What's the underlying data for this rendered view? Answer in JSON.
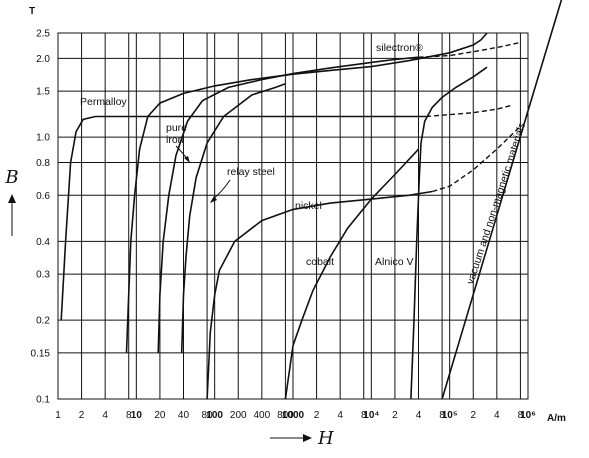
{
  "chart_data": {
    "type": "line",
    "title": "",
    "xlabel": "H",
    "ylabel": "B",
    "x_unit": "A/m",
    "y_unit": "T",
    "x_scale": "log",
    "y_scale": "log",
    "xlim": [
      1,
      1000000
    ],
    "ylim": [
      0.1,
      2.5
    ],
    "grid": true,
    "y_ticks": [
      "0.1",
      "0.15",
      "0.2",
      "0.3",
      "0.4",
      "0.6",
      "0.8",
      "1.0",
      "1.5",
      "2.0",
      "2.5"
    ],
    "y_tick_values": [
      0.1,
      0.15,
      0.2,
      0.3,
      0.4,
      0.6,
      0.8,
      1.0,
      1.5,
      2.0,
      2.5
    ],
    "x_ticks": [
      {
        "v": 1,
        "t": "1",
        "bold": false
      },
      {
        "v": 2,
        "t": "2",
        "bold": false
      },
      {
        "v": 4,
        "t": "4",
        "bold": false
      },
      {
        "v": 8,
        "t": "8",
        "bold": false
      },
      {
        "v": 10,
        "t": "10",
        "bold": true
      },
      {
        "v": 20,
        "t": "20",
        "bold": false
      },
      {
        "v": 40,
        "t": "40",
        "bold": false
      },
      {
        "v": 80,
        "t": "80",
        "bold": false
      },
      {
        "v": 100,
        "t": "100",
        "bold": true
      },
      {
        "v": 200,
        "t": "200",
        "bold": false
      },
      {
        "v": 400,
        "t": "400",
        "bold": false
      },
      {
        "v": 800,
        "t": "800",
        "bold": false
      },
      {
        "v": 1000,
        "t": "1000",
        "bold": true
      },
      {
        "v": 2000,
        "t": "2",
        "bold": false
      },
      {
        "v": 4000,
        "t": "4",
        "bold": false
      },
      {
        "v": 8000,
        "t": "8",
        "bold": false
      },
      {
        "v": 10000,
        "t": "10⁴",
        "bold": true
      },
      {
        "v": 20000,
        "t": "2",
        "bold": false
      },
      {
        "v": 40000,
        "t": "4",
        "bold": false
      },
      {
        "v": 80000,
        "t": "8",
        "bold": false
      },
      {
        "v": 100000,
        "t": "10⁵",
        "bold": true
      },
      {
        "v": 200000,
        "t": "2",
        "bold": false
      },
      {
        "v": 400000,
        "t": "4",
        "bold": false
      },
      {
        "v": 800000,
        "t": "8",
        "bold": false
      },
      {
        "v": 1000000,
        "t": "10⁶",
        "bold": true
      }
    ],
    "series": [
      {
        "name": "Permalloy",
        "points": [
          [
            1.1,
            0.2
          ],
          [
            1.25,
            0.4
          ],
          [
            1.45,
            0.8
          ],
          [
            1.7,
            1.05
          ],
          [
            2.1,
            1.17
          ],
          [
            3,
            1.2
          ],
          [
            10,
            1.2
          ],
          [
            100,
            1.2
          ],
          [
            1000,
            1.2
          ],
          [
            10000,
            1.2
          ],
          [
            50000,
            1.2
          ]
        ],
        "continuation": [
          [
            50000,
            1.2
          ],
          [
            100000,
            1.22
          ],
          [
            200000,
            1.24
          ],
          [
            400000,
            1.28
          ],
          [
            600000,
            1.32
          ]
        ]
      },
      {
        "name": "pure iron",
        "points": [
          [
            7.5,
            0.15
          ],
          [
            8,
            0.25
          ],
          [
            8.5,
            0.4
          ],
          [
            9.5,
            0.6
          ],
          [
            11,
            0.9
          ],
          [
            14,
            1.2
          ],
          [
            20,
            1.35
          ],
          [
            40,
            1.47
          ],
          [
            100,
            1.57
          ],
          [
            300,
            1.66
          ],
          [
            1000,
            1.74
          ],
          [
            3000,
            1.8
          ],
          [
            10000,
            1.86
          ],
          [
            30000,
            1.96
          ],
          [
            100000,
            2.1
          ],
          [
            200000,
            2.25
          ],
          [
            250000,
            2.35
          ],
          [
            300000,
            2.5
          ]
        ]
      },
      {
        "name": "silectron®",
        "points": [
          [
            19,
            0.15
          ],
          [
            20,
            0.25
          ],
          [
            22,
            0.4
          ],
          [
            26,
            0.6
          ],
          [
            32,
            0.85
          ],
          [
            45,
            1.15
          ],
          [
            70,
            1.38
          ],
          [
            150,
            1.55
          ],
          [
            400,
            1.66
          ],
          [
            1000,
            1.75
          ],
          [
            3000,
            1.84
          ],
          [
            10000,
            1.93
          ],
          [
            20000,
            1.98
          ],
          [
            40000,
            2.02
          ]
        ],
        "continuation": [
          [
            40000,
            2.02
          ],
          [
            100000,
            2.05
          ],
          [
            200000,
            2.12
          ],
          [
            400000,
            2.2
          ],
          [
            800000,
            2.3
          ]
        ]
      },
      {
        "name": "relay steel",
        "points": [
          [
            38,
            0.15
          ],
          [
            40,
            0.25
          ],
          [
            43,
            0.35
          ],
          [
            48,
            0.5
          ],
          [
            58,
            0.7
          ],
          [
            80,
            0.95
          ],
          [
            130,
            1.2
          ],
          [
            300,
            1.45
          ],
          [
            600,
            1.55
          ],
          [
            800,
            1.6
          ]
        ]
      },
      {
        "name": "nickel",
        "points": [
          [
            80,
            0.1
          ],
          [
            88,
            0.18
          ],
          [
            100,
            0.25
          ],
          [
            115,
            0.31
          ],
          [
            180,
            0.4
          ],
          [
            400,
            0.48
          ],
          [
            1000,
            0.53
          ],
          [
            3000,
            0.56
          ],
          [
            10000,
            0.58
          ],
          [
            30000,
            0.6
          ],
          [
            60000,
            0.62
          ]
        ],
        "continuation": [
          [
            60000,
            0.62
          ],
          [
            100000,
            0.65
          ],
          [
            200000,
            0.75
          ],
          [
            400000,
            0.9
          ],
          [
            800000,
            1.1
          ]
        ]
      },
      {
        "name": "cobalt",
        "points": [
          [
            800,
            0.1
          ],
          [
            1000,
            0.16
          ],
          [
            1300,
            0.2
          ],
          [
            1800,
            0.26
          ],
          [
            3000,
            0.35
          ],
          [
            5000,
            0.45
          ],
          [
            10000,
            0.58
          ],
          [
            20000,
            0.72
          ],
          [
            40000,
            0.9
          ]
        ]
      },
      {
        "name": "Alnico V",
        "points": [
          [
            32000,
            0.1
          ],
          [
            35000,
            0.2
          ],
          [
            38000,
            0.4
          ],
          [
            41000,
            0.7
          ],
          [
            43000,
            0.95
          ],
          [
            48000,
            1.15
          ],
          [
            60000,
            1.3
          ],
          [
            80000,
            1.42
          ],
          [
            120000,
            1.55
          ],
          [
            200000,
            1.7
          ],
          [
            300000,
            1.85
          ]
        ]
      },
      {
        "name": "vacuum and non-magnetic materials",
        "points": [
          [
            80000,
            0.1
          ],
          [
            1000000,
            1.26
          ],
          [
            2800000,
            3.5
          ]
        ]
      }
    ],
    "labels": {
      "permalloy": "Permalloy",
      "pure_iron_1": "pure",
      "pure_iron_2": "iron",
      "relay_steel": "relay steel",
      "silectron": "silectron®",
      "nickel": "nickel",
      "cobalt": "cobalt",
      "alnico": "Alnico V",
      "vacuum": "vacuum and non-magnetic materials"
    },
    "y_unit_label": "T",
    "x_unit_label": "A/m",
    "y_axis_symbol": "B",
    "x_axis_symbol": "H"
  }
}
